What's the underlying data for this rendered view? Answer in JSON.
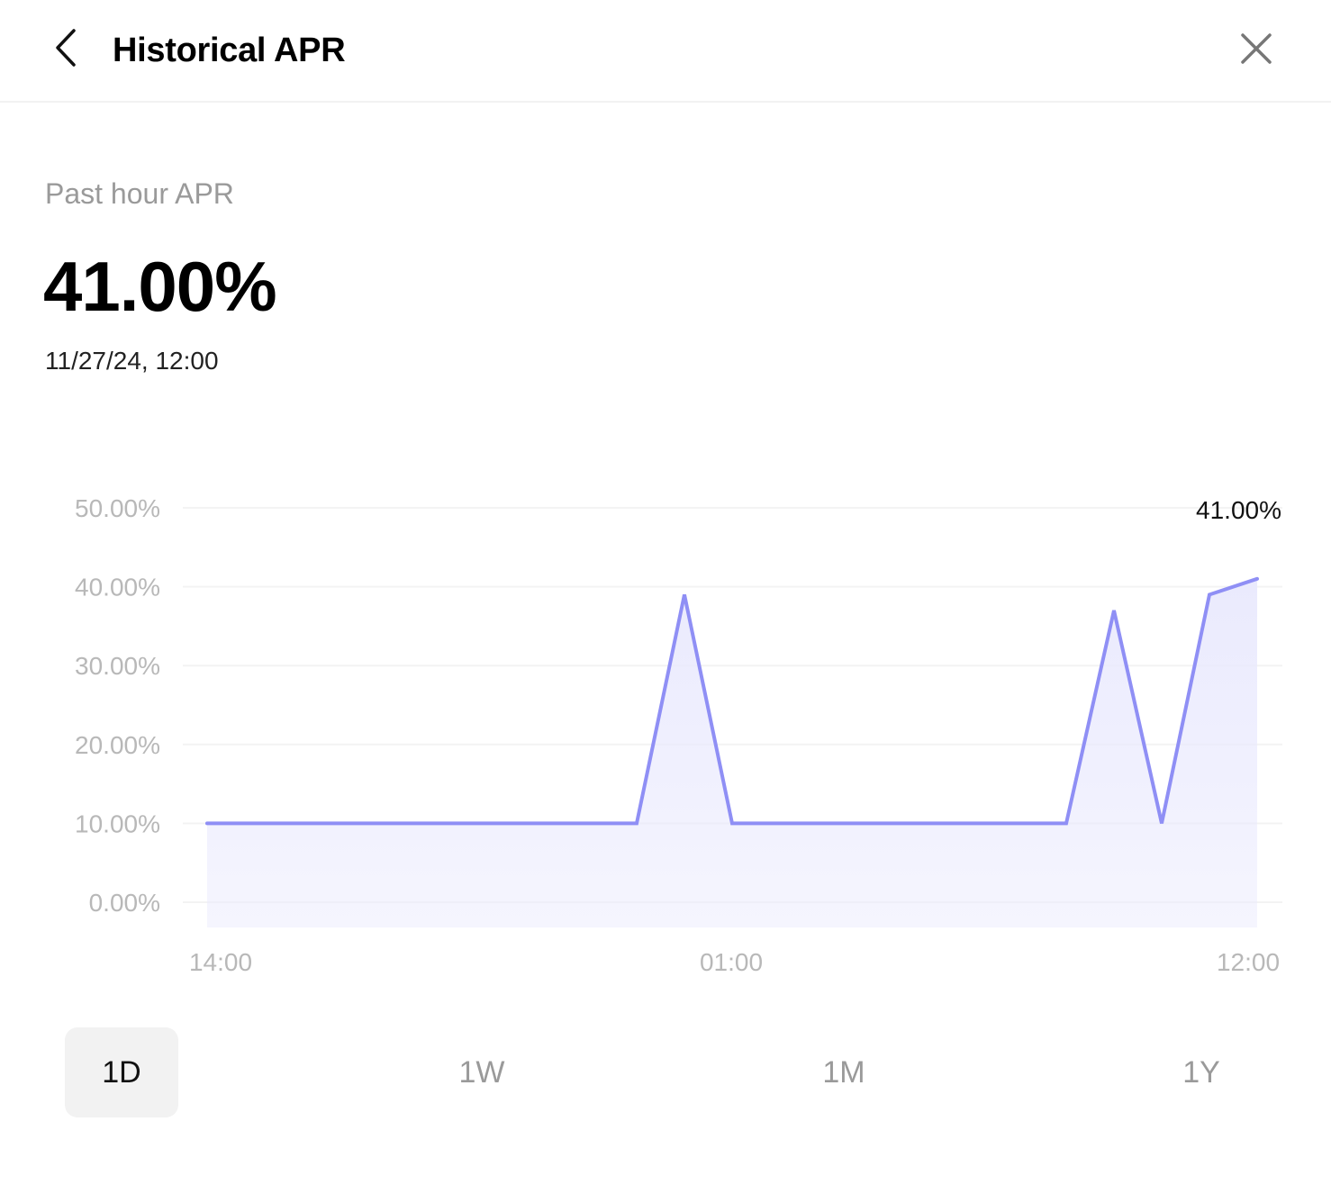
{
  "header": {
    "title": "Historical APR",
    "back_icon": "chevron-left-icon",
    "close_icon": "close-icon"
  },
  "summary": {
    "label": "Past hour APR",
    "value": "41.00%",
    "timestamp": "11/27/24, 12:00"
  },
  "chart_data": {
    "type": "area",
    "title": "",
    "xlabel": "",
    "ylabel": "",
    "ylim": [
      0,
      50
    ],
    "y_ticks": [
      "0.00%",
      "10.00%",
      "20.00%",
      "30.00%",
      "40.00%",
      "50.00%"
    ],
    "x_tick_labels": [
      "14:00",
      "01:00",
      "12:00"
    ],
    "grid": true,
    "line_color": "#8f8ff5",
    "fill_color": "#e9e9fd",
    "last_value_label": "41.00%",
    "series": [
      {
        "values": [
          10,
          10,
          10,
          10,
          10,
          10,
          10,
          10,
          10,
          10,
          39,
          10,
          10,
          10,
          10,
          10,
          10,
          10,
          10,
          37,
          10,
          39,
          41
        ]
      }
    ]
  },
  "tabs": [
    {
      "label": "1D",
      "active": true
    },
    {
      "label": "1W",
      "active": false
    },
    {
      "label": "1M",
      "active": false
    },
    {
      "label": "1Y",
      "active": false
    }
  ]
}
